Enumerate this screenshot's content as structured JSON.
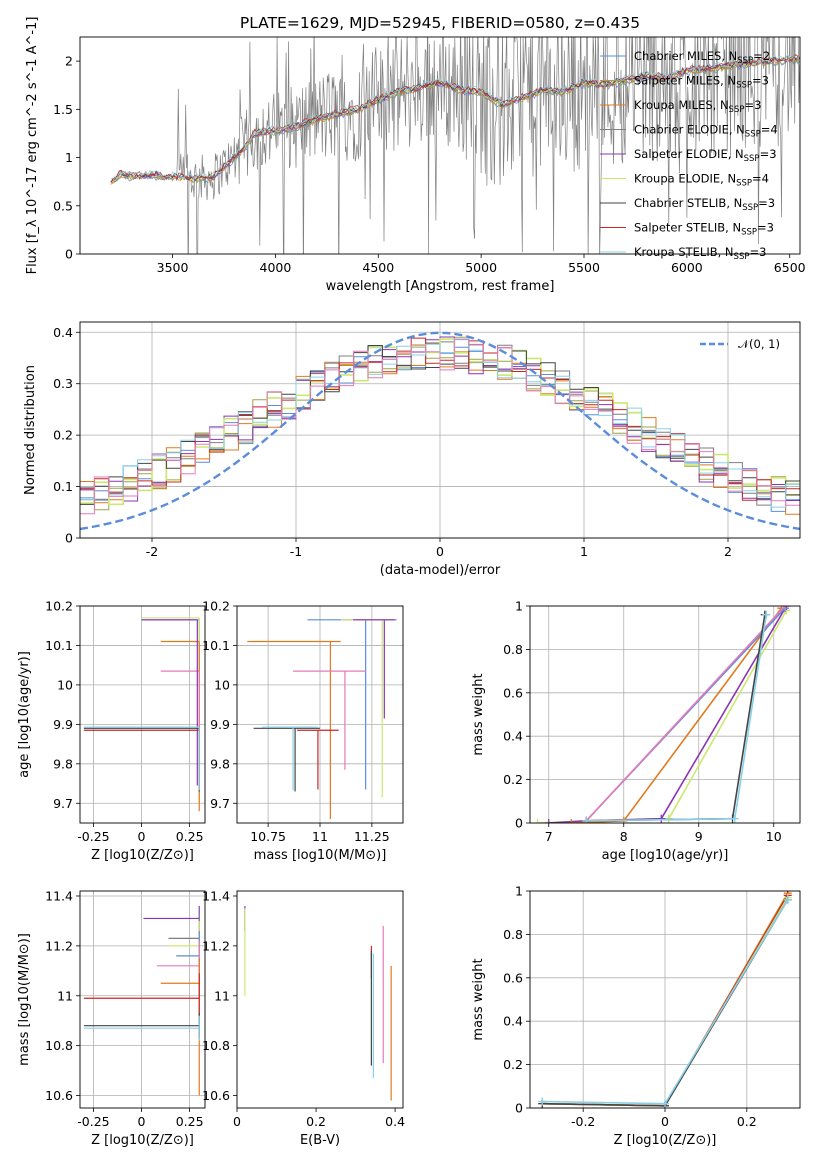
{
  "title": "PLATE=1629, MJD=52945, FIBERID=0580, z=0.435",
  "colors": {
    "chabrier_miles": "#5b8ddc",
    "salpeter_miles": "#9aa64a",
    "kroupa_miles": "#e07a1f",
    "chabrier_elodie": "#7f7f7f",
    "salpeter_elodie": "#8e33b4",
    "kroupa_elodie": "#cbe870",
    "chabrier_stelib": "#444444",
    "salpeter_stelib": "#c62828",
    "kroupa_stelib": "#88d0e8",
    "normal": "#5b8ddc",
    "pink": "#e57bb8"
  },
  "chart_data": [
    {
      "type": "line",
      "xlabel": "wavelength [Angstrom, rest frame]",
      "ylabel": "Flux [f_λ 10^-17 erg cm^-2 s^-1 A^-1]",
      "xlim": [
        3050,
        6550
      ],
      "ylim": [
        0,
        2.25
      ],
      "xticks": [
        3500,
        4000,
        4500,
        5000,
        5500,
        6000,
        6500
      ],
      "yticks": [
        0.0,
        0.5,
        1.0,
        1.5,
        2.0
      ],
      "legend": [
        {
          "label": "Chabrier MILES, N",
          "sub": "SSP",
          "tail": "=2",
          "color": "chabrier_miles"
        },
        {
          "label": "Salpeter MILES, N",
          "sub": "SSP",
          "tail": "=3",
          "color": "salpeter_miles"
        },
        {
          "label": "Kroupa MILES, N",
          "sub": "SSP",
          "tail": "=3",
          "color": "kroupa_miles"
        },
        {
          "label": "Chabrier ELODIE, N",
          "sub": "SSP",
          "tail": "=4",
          "color": "chabrier_elodie"
        },
        {
          "label": "Salpeter ELODIE, N",
          "sub": "SSP",
          "tail": "=3",
          "color": "salpeter_elodie"
        },
        {
          "label": "Kroupa ELODIE, N",
          "sub": "SSP",
          "tail": "=4",
          "color": "kroupa_elodie"
        },
        {
          "label": "Chabrier STELIB, N",
          "sub": "SSP",
          "tail": "=3",
          "color": "chabrier_stelib"
        },
        {
          "label": "Salpeter STELIB, N",
          "sub": "SSP",
          "tail": "=3",
          "color": "salpeter_stelib"
        },
        {
          "label": "Kroupa STELIB, N",
          "sub": "SSP",
          "tail": "=3",
          "color": "kroupa_stelib"
        }
      ],
      "legend_position": "upper right",
      "model_continuum": {
        "x": [
          3200,
          3250,
          3300,
          3400,
          3500,
          3600,
          3700,
          3800,
          3850,
          3900,
          4000,
          4100,
          4200,
          4300,
          4400,
          4500,
          4600,
          4700,
          4800,
          4900,
          5000,
          5100,
          5200,
          5300,
          5400,
          5500,
          5600,
          5700,
          5800,
          5900,
          6000,
          6100,
          6200,
          6300,
          6400,
          6500
        ],
        "y": [
          0.75,
          0.83,
          0.8,
          0.82,
          0.8,
          0.78,
          0.8,
          1.0,
          1.1,
          1.25,
          1.28,
          1.32,
          1.4,
          1.45,
          1.5,
          1.6,
          1.68,
          1.72,
          1.78,
          1.7,
          1.68,
          1.55,
          1.62,
          1.7,
          1.68,
          1.78,
          1.75,
          1.8,
          1.85,
          1.82,
          1.9,
          1.92,
          1.95,
          1.98,
          2.0,
          2.02
        ]
      }
    },
    {
      "type": "line",
      "xlabel": "(data-model)/error",
      "ylabel": "Normed distribution",
      "xlim": [
        -2.5,
        2.5
      ],
      "ylim": [
        0,
        0.42
      ],
      "xticks": [
        -2,
        -1,
        0,
        1,
        2
      ],
      "yticks": [
        0.0,
        0.1,
        0.2,
        0.3,
        0.4
      ],
      "grid": true,
      "legend": [
        {
          "label": "𝒩(0, 1)",
          "color": "normal",
          "style": "dashed"
        }
      ],
      "normal_curve": {
        "mean": 0,
        "sigma": 1
      }
    },
    {
      "type": "scatter",
      "name": "age_vs_Z",
      "xlabel": "Z [log10(Z/Z⊙)]",
      "ylabel": "age [log10(age/yr)]",
      "xlim": [
        -0.32,
        0.33
      ],
      "ylim": [
        9.65,
        10.2
      ],
      "xticks": [
        -0.25,
        0.0,
        0.25
      ],
      "yticks": [
        9.7,
        9.8,
        9.9,
        10.0,
        10.1,
        10.2
      ],
      "grid": true,
      "points": [
        {
          "x": 0.3,
          "y": 10.165,
          "xerr": [
            0.3,
            0.0
          ],
          "yerr": [
            0.42,
            0.0
          ],
          "color": "chabrier_miles"
        },
        {
          "x": 0.3,
          "y": 10.17,
          "xerr": [
            0.3,
            0.0
          ],
          "yerr": [
            0.47,
            0.0
          ],
          "color": "kroupa_elodie"
        },
        {
          "x": 0.3,
          "y": 10.11,
          "xerr": [
            0.2,
            0.0
          ],
          "yerr": [
            0.43,
            0.0
          ],
          "color": "kroupa_miles"
        },
        {
          "x": 0.3,
          "y": 10.035,
          "xerr": [
            0.2,
            0.0
          ],
          "yerr": [
            0.2,
            0.0
          ],
          "color": "pink"
        },
        {
          "x": 0.29,
          "y": 10.165,
          "xerr": [
            0.29,
            0.0
          ],
          "yerr": [
            0.42,
            0.0
          ],
          "color": "salpeter_elodie"
        },
        {
          "x": 0.3,
          "y": 9.89,
          "xerr": [
            0.6,
            0.0
          ],
          "yerr": [
            0.16,
            0.0
          ],
          "color": "chabrier_stelib"
        },
        {
          "x": 0.3,
          "y": 9.885,
          "xerr": [
            0.6,
            0.0
          ],
          "yerr": [
            0.15,
            0.0
          ],
          "color": "salpeter_stelib"
        },
        {
          "x": 0.3,
          "y": 9.893,
          "xerr": [
            0.6,
            0.0
          ],
          "yerr": [
            0.16,
            0.0
          ],
          "color": "kroupa_stelib"
        }
      ]
    },
    {
      "type": "scatter",
      "name": "age_vs_mass",
      "xlabel": "mass [log10(M/M⊙)]",
      "ylabel": "",
      "xlim": [
        10.6,
        11.4
      ],
      "ylim": [
        9.65,
        10.2
      ],
      "xticks": [
        10.75,
        11.0,
        11.25
      ],
      "yticks": [
        9.7,
        9.8,
        9.9,
        10.0,
        10.1,
        10.2
      ],
      "grid": true,
      "points": [
        {
          "x": 11.22,
          "y": 10.165,
          "xerr": [
            0.28,
            0.15
          ],
          "yerr": [
            0.43,
            0.0
          ],
          "color": "chabrier_miles"
        },
        {
          "x": 11.3,
          "y": 10.165,
          "xerr": [
            0.2,
            0.05
          ],
          "yerr": [
            0.45,
            0.0
          ],
          "color": "kroupa_elodie"
        },
        {
          "x": 11.05,
          "y": 10.11,
          "xerr": [
            0.4,
            0.05
          ],
          "yerr": [
            0.45,
            0.0
          ],
          "color": "kroupa_miles"
        },
        {
          "x": 11.12,
          "y": 10.035,
          "xerr": [
            0.25,
            0.1
          ],
          "yerr": [
            0.25,
            0.0
          ],
          "color": "pink"
        },
        {
          "x": 11.31,
          "y": 10.165,
          "xerr": [
            0.15,
            0.05
          ],
          "yerr": [
            0.25,
            0.0
          ],
          "color": "salpeter_elodie"
        },
        {
          "x": 10.88,
          "y": 9.89,
          "xerr": [
            0.2,
            0.12
          ],
          "yerr": [
            0.16,
            0.0
          ],
          "color": "chabrier_stelib"
        },
        {
          "x": 10.99,
          "y": 9.885,
          "xerr": [
            0.1,
            0.1
          ],
          "yerr": [
            0.15,
            0.0
          ],
          "color": "salpeter_stelib"
        },
        {
          "x": 10.87,
          "y": 9.893,
          "xerr": [
            0.15,
            0.12
          ],
          "yerr": [
            0.16,
            0.0
          ],
          "color": "kroupa_stelib"
        }
      ]
    },
    {
      "type": "line",
      "name": "mass_weight_vs_age",
      "xlabel": "age [log10(age/yr)]",
      "ylabel": "mass weight",
      "xlim": [
        6.75,
        10.35
      ],
      "ylim": [
        0,
        1.0
      ],
      "xticks": [
        7,
        8,
        9,
        10
      ],
      "yticks": [
        0.0,
        0.2,
        0.4,
        0.6,
        0.8,
        1.0
      ],
      "grid": true,
      "series": [
        {
          "color": "kroupa_elodie",
          "x": [
            6.85,
            7.5,
            8.6,
            10.17
          ],
          "y": [
            0.0,
            0.01,
            0.02,
            0.98
          ]
        },
        {
          "color": "salpeter_elodie",
          "x": [
            7.0,
            7.5,
            8.5,
            10.17
          ],
          "y": [
            0.0,
            0.01,
            0.02,
            1.0
          ]
        },
        {
          "color": "kroupa_miles",
          "x": [
            7.3,
            8.0,
            10.1
          ],
          "y": [
            0.0,
            0.01,
            0.99
          ]
        },
        {
          "color": "chabrier_miles",
          "x": [
            7.5,
            10.15
          ],
          "y": [
            0.01,
            0.99
          ]
        },
        {
          "color": "pink",
          "x": [
            7.5,
            10.15
          ],
          "y": [
            0.01,
            1.0
          ]
        },
        {
          "color": "chabrier_stelib",
          "x": [
            7.5,
            9.45,
            9.88
          ],
          "y": [
            0.01,
            0.02,
            0.96
          ]
        },
        {
          "color": "kroupa_stelib",
          "x": [
            7.5,
            9.48,
            9.9
          ],
          "y": [
            0.01,
            0.02,
            0.96
          ]
        }
      ]
    },
    {
      "type": "scatter",
      "name": "mass_vs_Z",
      "xlabel": "Z [log10(Z/Z⊙)]",
      "ylabel": "mass [log10(M/M⊙)]",
      "xlim": [
        -0.32,
        0.33
      ],
      "ylim": [
        10.55,
        11.42
      ],
      "xticks": [
        -0.25,
        0.0,
        0.25
      ],
      "yticks": [
        10.6,
        10.8,
        11.0,
        11.2,
        11.4
      ],
      "grid": true,
      "points": [
        {
          "x": 0.3,
          "y": 11.31,
          "xerr": [
            0.29,
            0.0
          ],
          "yerr": [
            0.05,
            0.05
          ],
          "color": "salpeter_elodie"
        },
        {
          "x": 0.3,
          "y": 11.23,
          "xerr": [
            0.16,
            0.0
          ],
          "yerr": [
            0.1,
            0.1
          ],
          "color": "chabrier_elodie"
        },
        {
          "x": 0.3,
          "y": 11.2,
          "xerr": [
            0.16,
            0.0
          ],
          "yerr": [
            0.2,
            0.1
          ],
          "color": "kroupa_elodie"
        },
        {
          "x": 0.3,
          "y": 11.16,
          "xerr": [
            0.12,
            0.0
          ],
          "yerr": [
            0.1,
            0.1
          ],
          "color": "chabrier_miles"
        },
        {
          "x": 0.3,
          "y": 11.12,
          "xerr": [
            0.22,
            0.0
          ],
          "yerr": [
            0.1,
            0.1
          ],
          "color": "pink"
        },
        {
          "x": 0.3,
          "y": 11.05,
          "xerr": [
            0.2,
            0.0
          ],
          "yerr": [
            0.45,
            0.1
          ],
          "color": "kroupa_miles"
        },
        {
          "x": 0.3,
          "y": 10.99,
          "xerr": [
            0.6,
            0.0
          ],
          "yerr": [
            0.1,
            0.1
          ],
          "color": "salpeter_stelib"
        },
        {
          "x": 0.3,
          "y": 10.88,
          "xerr": [
            0.6,
            0.0
          ],
          "yerr": [
            0.05,
            0.05
          ],
          "color": "chabrier_stelib"
        },
        {
          "x": 0.3,
          "y": 10.87,
          "xerr": [
            0.6,
            0.0
          ],
          "yerr": [
            0.05,
            0.05
          ],
          "color": "kroupa_stelib"
        }
      ]
    },
    {
      "type": "scatter",
      "name": "mass_vs_EBV",
      "xlabel": "E(B-V)",
      "ylabel": "",
      "xlim": [
        0.0,
        0.42
      ],
      "ylim": [
        10.55,
        11.42
      ],
      "xticks": [
        0.0,
        0.2,
        0.4
      ],
      "yticks": [
        10.6,
        10.8,
        11.0,
        11.2,
        11.4
      ],
      "points": [
        {
          "x": 0.02,
          "y": 11.31,
          "yerr": [
            0.05,
            0.05
          ],
          "color": "salpeter_elodie"
        },
        {
          "x": 0.02,
          "y": 11.2,
          "yerr": [
            0.2,
            0.15
          ],
          "color": "kroupa_elodie"
        },
        {
          "x": 0.34,
          "y": 11.12,
          "yerr": [
            0.05,
            0.08
          ],
          "color": "salpeter_stelib"
        },
        {
          "x": 0.34,
          "y": 10.88,
          "yerr": [
            0.16,
            0.3
          ],
          "color": "chabrier_stelib"
        },
        {
          "x": 0.345,
          "y": 10.87,
          "yerr": [
            0.2,
            0.3
          ],
          "color": "kroupa_stelib"
        },
        {
          "x": 0.37,
          "y": 10.98,
          "yerr": [
            0.25,
            0.3
          ],
          "color": "pink"
        },
        {
          "x": 0.39,
          "y": 10.85,
          "yerr": [
            0.27,
            0.27
          ],
          "color": "kroupa_miles"
        }
      ]
    },
    {
      "type": "line",
      "name": "mass_weight_vs_Z",
      "xlabel": "Z [log10(Z/Z⊙)]",
      "ylabel": "mass weight",
      "xlim": [
        -0.33,
        0.33
      ],
      "ylim": [
        0,
        1.0
      ],
      "xticks": [
        -0.2,
        0.0,
        0.2
      ],
      "yticks": [
        0.0,
        0.2,
        0.4,
        0.6,
        0.8,
        1.0
      ],
      "grid": true,
      "series": [
        {
          "color": "kroupa_miles",
          "x": [
            -0.3,
            0.0,
            0.3
          ],
          "y": [
            0.02,
            0.01,
            0.99
          ]
        },
        {
          "color": "salpeter_stelib",
          "x": [
            -0.3,
            0.0,
            0.3
          ],
          "y": [
            0.02,
            0.01,
            0.98
          ]
        },
        {
          "color": "kroupa_elodie",
          "x": [
            -0.3,
            0.0,
            0.3
          ],
          "y": [
            0.02,
            0.01,
            0.97
          ]
        },
        {
          "color": "chabrier_stelib",
          "x": [
            -0.3,
            0.0,
            0.3
          ],
          "y": [
            0.02,
            0.01,
            0.96
          ]
        },
        {
          "color": "kroupa_stelib",
          "x": [
            -0.3,
            0.0,
            0.3
          ],
          "y": [
            0.03,
            0.02,
            0.96
          ]
        }
      ]
    }
  ]
}
